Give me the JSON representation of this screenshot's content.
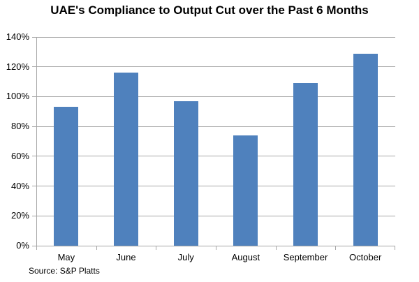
{
  "title": "UAE's Compliance to Output Cut over the Past 6 Months",
  "source": "Source: S&P Platts",
  "chart_data": {
    "type": "bar",
    "title": "UAE's Compliance to Output Cut over the Past 6 Months",
    "categories": [
      "May",
      "June",
      "July",
      "August",
      "September",
      "October"
    ],
    "values": [
      93,
      116,
      97,
      74,
      109,
      129
    ],
    "xlabel": "",
    "ylabel": "",
    "ylim": [
      0,
      140
    ],
    "ytick_step": 20,
    "ytick_labels": [
      "0%",
      "20%",
      "40%",
      "60%",
      "80%",
      "100%",
      "120%",
      "140%"
    ],
    "grid": true,
    "legend": false,
    "annotation": "Source: S&P Platts",
    "colors": {
      "bar": "#4F81BD",
      "gridline": "#A6A6A6",
      "axis": "#A6A6A6",
      "text": "#000000",
      "background": "#FFFFFF"
    }
  }
}
